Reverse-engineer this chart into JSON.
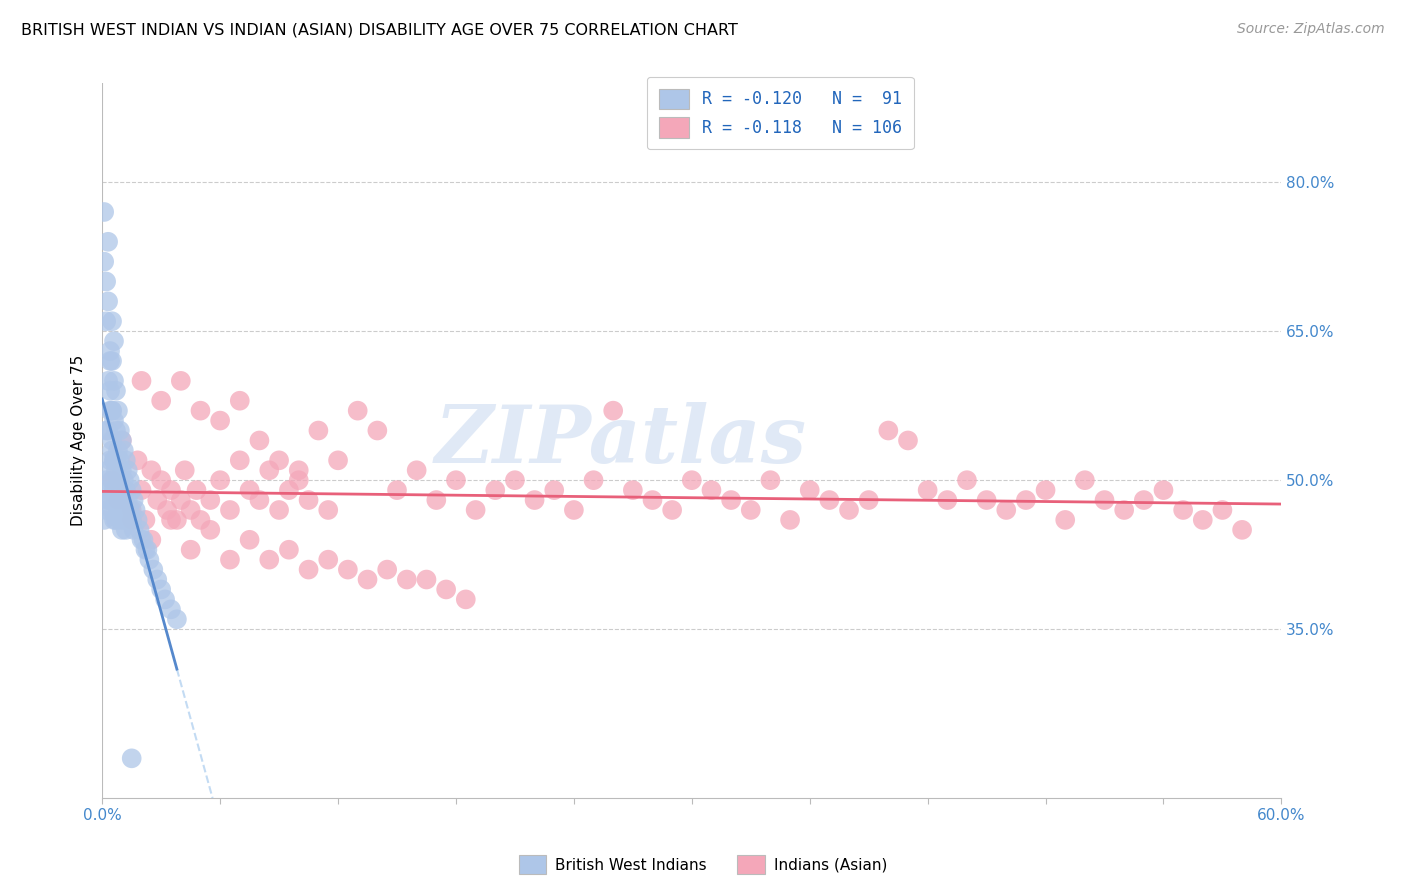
{
  "title": "BRITISH WEST INDIAN VS INDIAN (ASIAN) DISABILITY AGE OVER 75 CORRELATION CHART",
  "source": "Source: ZipAtlas.com",
  "ylabel": "Disability Age Over 75",
  "ytick_labels": [
    "80.0%",
    "65.0%",
    "50.0%",
    "35.0%"
  ],
  "ytick_values": [
    0.8,
    0.65,
    0.5,
    0.35
  ],
  "xmin": 0.0,
  "xmax": 0.6,
  "ymin": 0.18,
  "ymax": 0.9,
  "legend_label1": "British West Indians",
  "legend_label2": "Indians (Asian)",
  "R1": -0.12,
  "N1": 91,
  "R2": -0.118,
  "N2": 106,
  "color1": "#aec6e8",
  "color2": "#f4a7b9",
  "trendline1_solid_color": "#5588cc",
  "trendline1_dash_color": "#aaccee",
  "trendline2_color": "#e8607a",
  "watermark": "ZIPatlas",
  "bwi_x": [
    0.001,
    0.001,
    0.002,
    0.002,
    0.002,
    0.003,
    0.003,
    0.003,
    0.003,
    0.004,
    0.004,
    0.004,
    0.004,
    0.005,
    0.005,
    0.005,
    0.005,
    0.005,
    0.005,
    0.006,
    0.006,
    0.006,
    0.006,
    0.006,
    0.006,
    0.007,
    0.007,
    0.007,
    0.007,
    0.007,
    0.008,
    0.008,
    0.008,
    0.008,
    0.009,
    0.009,
    0.009,
    0.009,
    0.01,
    0.01,
    0.01,
    0.01,
    0.011,
    0.011,
    0.011,
    0.012,
    0.012,
    0.012,
    0.013,
    0.013,
    0.014,
    0.014,
    0.015,
    0.015,
    0.016,
    0.016,
    0.017,
    0.018,
    0.019,
    0.02,
    0.021,
    0.022,
    0.023,
    0.024,
    0.026,
    0.028,
    0.03,
    0.032,
    0.035,
    0.038,
    0.001,
    0.001,
    0.002,
    0.002,
    0.003,
    0.003,
    0.004,
    0.004,
    0.005,
    0.005,
    0.006,
    0.006,
    0.007,
    0.007,
    0.008,
    0.008,
    0.009,
    0.01,
    0.011,
    0.012,
    0.015
  ],
  "bwi_y": [
    0.49,
    0.46,
    0.55,
    0.5,
    0.47,
    0.6,
    0.55,
    0.51,
    0.48,
    0.62,
    0.57,
    0.52,
    0.48,
    0.66,
    0.62,
    0.57,
    0.53,
    0.5,
    0.47,
    0.64,
    0.6,
    0.56,
    0.52,
    0.49,
    0.46,
    0.59,
    0.55,
    0.52,
    0.49,
    0.46,
    0.57,
    0.53,
    0.5,
    0.47,
    0.55,
    0.52,
    0.49,
    0.46,
    0.54,
    0.51,
    0.48,
    0.45,
    0.53,
    0.5,
    0.47,
    0.52,
    0.49,
    0.46,
    0.51,
    0.48,
    0.5,
    0.47,
    0.49,
    0.46,
    0.48,
    0.45,
    0.47,
    0.46,
    0.45,
    0.44,
    0.44,
    0.43,
    0.43,
    0.42,
    0.41,
    0.4,
    0.39,
    0.38,
    0.37,
    0.36,
    0.77,
    0.72,
    0.7,
    0.66,
    0.74,
    0.68,
    0.63,
    0.59,
    0.57,
    0.54,
    0.52,
    0.49,
    0.51,
    0.48,
    0.5,
    0.47,
    0.48,
    0.47,
    0.46,
    0.45,
    0.22
  ],
  "indian_x": [
    0.005,
    0.008,
    0.01,
    0.012,
    0.015,
    0.018,
    0.02,
    0.022,
    0.025,
    0.028,
    0.03,
    0.033,
    0.035,
    0.038,
    0.04,
    0.042,
    0.045,
    0.048,
    0.05,
    0.055,
    0.06,
    0.065,
    0.07,
    0.075,
    0.08,
    0.085,
    0.09,
    0.095,
    0.1,
    0.105,
    0.11,
    0.115,
    0.12,
    0.13,
    0.14,
    0.15,
    0.16,
    0.17,
    0.18,
    0.19,
    0.2,
    0.21,
    0.22,
    0.23,
    0.24,
    0.25,
    0.26,
    0.27,
    0.28,
    0.29,
    0.3,
    0.31,
    0.32,
    0.33,
    0.34,
    0.35,
    0.36,
    0.37,
    0.38,
    0.39,
    0.4,
    0.41,
    0.42,
    0.43,
    0.44,
    0.45,
    0.46,
    0.47,
    0.48,
    0.49,
    0.5,
    0.51,
    0.52,
    0.53,
    0.54,
    0.55,
    0.56,
    0.57,
    0.58,
    0.015,
    0.025,
    0.035,
    0.045,
    0.055,
    0.065,
    0.075,
    0.085,
    0.095,
    0.105,
    0.115,
    0.125,
    0.135,
    0.145,
    0.155,
    0.165,
    0.175,
    0.185,
    0.02,
    0.03,
    0.04,
    0.05,
    0.06,
    0.07,
    0.08,
    0.09,
    0.1
  ],
  "indian_y": [
    0.5,
    0.48,
    0.54,
    0.49,
    0.47,
    0.52,
    0.49,
    0.46,
    0.51,
    0.48,
    0.5,
    0.47,
    0.49,
    0.46,
    0.48,
    0.51,
    0.47,
    0.49,
    0.46,
    0.48,
    0.5,
    0.47,
    0.52,
    0.49,
    0.48,
    0.51,
    0.47,
    0.49,
    0.5,
    0.48,
    0.55,
    0.47,
    0.52,
    0.57,
    0.55,
    0.49,
    0.51,
    0.48,
    0.5,
    0.47,
    0.49,
    0.5,
    0.48,
    0.49,
    0.47,
    0.5,
    0.57,
    0.49,
    0.48,
    0.47,
    0.5,
    0.49,
    0.48,
    0.47,
    0.5,
    0.46,
    0.49,
    0.48,
    0.47,
    0.48,
    0.55,
    0.54,
    0.49,
    0.48,
    0.5,
    0.48,
    0.47,
    0.48,
    0.49,
    0.46,
    0.5,
    0.48,
    0.47,
    0.48,
    0.49,
    0.47,
    0.46,
    0.47,
    0.45,
    0.46,
    0.44,
    0.46,
    0.43,
    0.45,
    0.42,
    0.44,
    0.42,
    0.43,
    0.41,
    0.42,
    0.41,
    0.4,
    0.41,
    0.4,
    0.4,
    0.39,
    0.38,
    0.6,
    0.58,
    0.6,
    0.57,
    0.56,
    0.58,
    0.54,
    0.52,
    0.51
  ]
}
